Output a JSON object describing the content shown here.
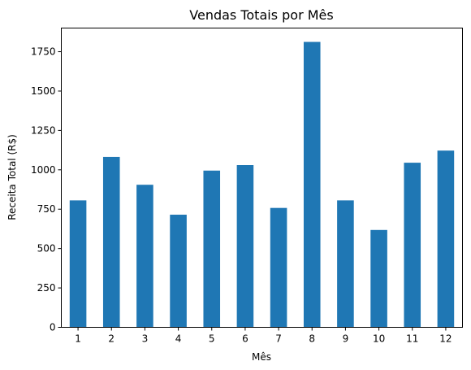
{
  "chart_data": {
    "type": "bar",
    "title": "Vendas Totais por Mês",
    "xlabel": "Mês",
    "ylabel": "Receita Total (R$)",
    "categories": [
      "1",
      "2",
      "3",
      "4",
      "5",
      "6",
      "7",
      "8",
      "9",
      "10",
      "11",
      "12"
    ],
    "values": [
      806,
      1082,
      905,
      715,
      995,
      1030,
      758,
      1812,
      806,
      618,
      1045,
      1122
    ],
    "ylim": [
      0,
      1900
    ],
    "yticks": [
      0,
      250,
      500,
      750,
      1000,
      1250,
      1500,
      1750
    ],
    "color": "#1f77b4",
    "grid": false,
    "legend": false
  }
}
